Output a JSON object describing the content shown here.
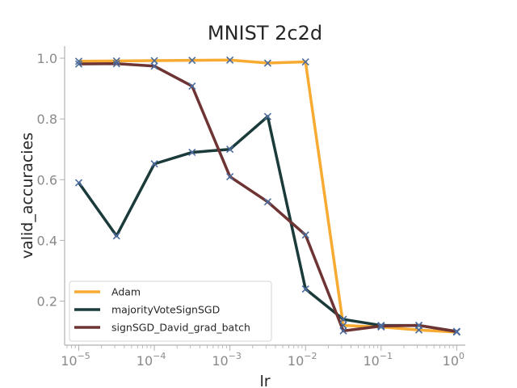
{
  "chart_data": {
    "type": "line",
    "title": "MNIST 2c2d",
    "xlabel": "lr",
    "ylabel": "valid_accuracies",
    "xscale": "log",
    "xlim": [
      6.5e-06,
      1.3
    ],
    "ylim": [
      0.055,
      1.04
    ],
    "grid": false,
    "legend_position": "bottom-left",
    "x": [
      1e-05,
      3.16e-05,
      0.0001,
      0.000316,
      0.001,
      0.00316,
      0.01,
      0.0316,
      0.1,
      0.316,
      1.0
    ],
    "x_tick_labels": [
      {
        "base": "10",
        "exp": "−5",
        "value": 1e-05
      },
      {
        "base": "10",
        "exp": "−4",
        "value": 0.0001
      },
      {
        "base": "10",
        "exp": "−3",
        "value": 0.001
      },
      {
        "base": "10",
        "exp": "−2",
        "value": 0.01
      },
      {
        "base": "10",
        "exp": "−1",
        "value": 0.1
      },
      {
        "base": "10",
        "exp": "0",
        "value": 1.0
      }
    ],
    "y_ticks": [
      {
        "label": "0.2",
        "value": 0.2
      },
      {
        "label": "0.4",
        "value": 0.4
      },
      {
        "label": "0.6",
        "value": 0.6
      },
      {
        "label": "0.8",
        "value": 0.8
      },
      {
        "label": "1.0",
        "value": 1.0
      }
    ],
    "series": [
      {
        "name": "Adam",
        "color": "#f7ab32",
        "values": [
          0.99,
          0.991,
          0.992,
          0.993,
          0.994,
          0.984,
          0.988,
          0.12,
          0.115,
          0.105,
          0.098
        ]
      },
      {
        "name": "majorityVoteSignSGD",
        "color": "#1b3a3a",
        "values": [
          0.59,
          0.415,
          0.652,
          0.69,
          0.7,
          0.808,
          0.24,
          0.14,
          0.12,
          0.12,
          0.1
        ]
      },
      {
        "name": "signSGD_David_grad_batch",
        "color": "#6e3433",
        "values": [
          0.981,
          0.982,
          0.974,
          0.908,
          0.61,
          0.527,
          0.418,
          0.102,
          0.118,
          0.12,
          0.1
        ]
      }
    ],
    "marker": "x",
    "marker_color": "#4a6b9c"
  }
}
